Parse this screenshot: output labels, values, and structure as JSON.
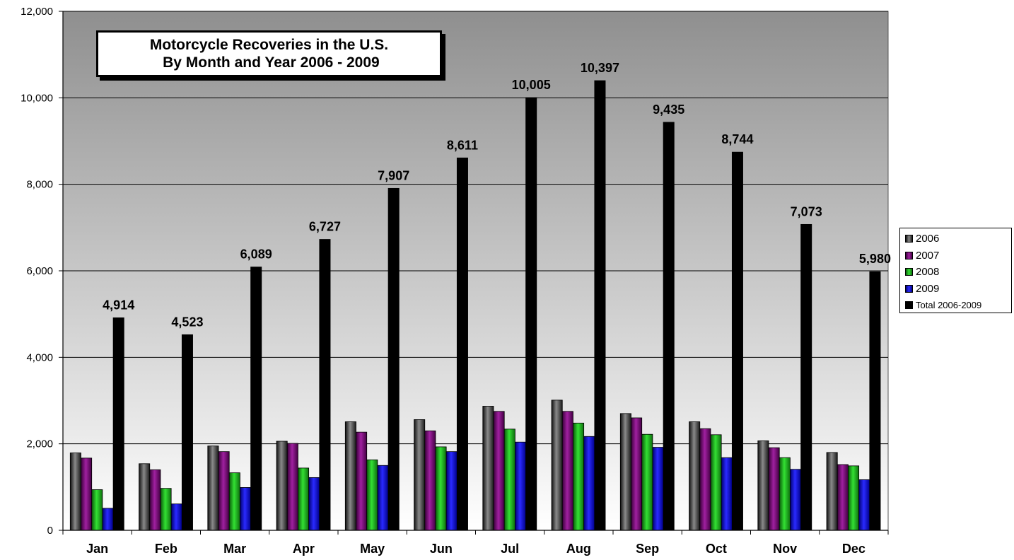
{
  "chart_data": {
    "type": "bar",
    "title_lines": [
      "Motorcycle Recoveries in the U.S.",
      " By Month and Year 2006 - 2009"
    ],
    "categories": [
      "Jan",
      "Feb",
      "Mar",
      "Apr",
      "May",
      "Jun",
      "Jul",
      "Aug",
      "Sep",
      "Oct",
      "Nov",
      "Dec"
    ],
    "series": [
      {
        "name": "2006",
        "color": "#3a3a3a",
        "values": [
          1790,
          1540,
          1950,
          2060,
          2510,
          2560,
          2870,
          3010,
          2700,
          2510,
          2070,
          1800
        ]
      },
      {
        "name": "2007",
        "color": "#7b0f7b",
        "values": [
          1670,
          1400,
          1820,
          2010,
          2270,
          2300,
          2750,
          2750,
          2600,
          2350,
          1910,
          1520
        ]
      },
      {
        "name": "2008",
        "color": "#1fae1f",
        "values": [
          940,
          970,
          1330,
          1440,
          1630,
          1930,
          2340,
          2480,
          2220,
          2210,
          1680,
          1490
        ]
      },
      {
        "name": "2009",
        "color": "#1414d8",
        "values": [
          510,
          610,
          990,
          1220,
          1500,
          1820,
          2040,
          2170,
          1920,
          1680,
          1410,
          1170
        ]
      },
      {
        "name": "Total 2006-2009",
        "color": "#000000",
        "values": [
          4914,
          4523,
          6089,
          6727,
          7907,
          8611,
          10005,
          10397,
          9435,
          8744,
          7073,
          5980
        ]
      }
    ],
    "total_labels": [
      "4,914",
      "4,523",
      "6,089",
      "6,727",
      "7,907",
      "8,611",
      "10,005",
      "10,397",
      "9,435",
      "8,744",
      "7,073",
      "5,980"
    ],
    "ylim": [
      0,
      12000
    ],
    "y_ticks": [
      0,
      2000,
      4000,
      6000,
      8000,
      10000,
      12000
    ],
    "y_tick_labels": [
      "0",
      "2,000",
      "4,000",
      "6,000",
      "8,000",
      "10,000",
      "12,000"
    ],
    "xlabel": "",
    "ylabel": "",
    "grid": true,
    "legend_position": "right"
  }
}
